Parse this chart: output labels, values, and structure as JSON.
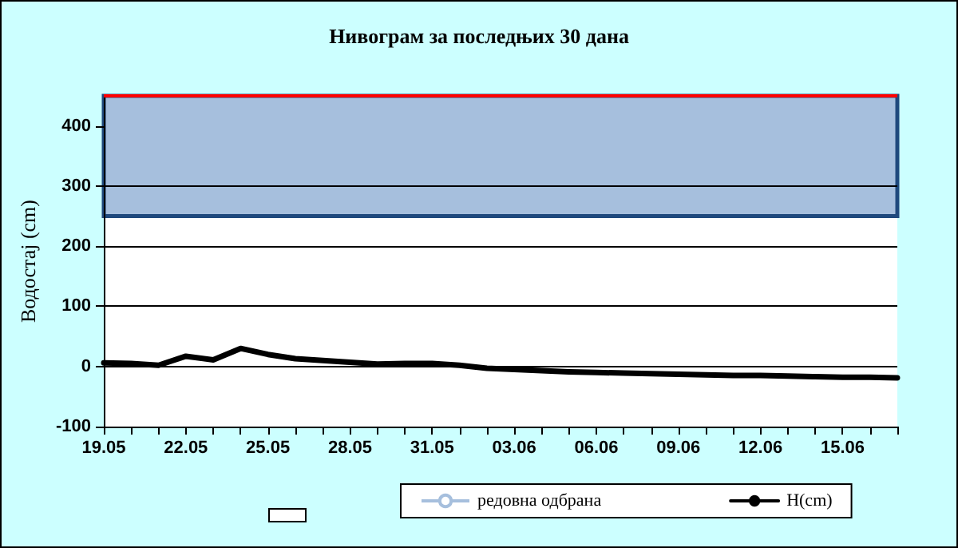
{
  "chart_data": {
    "type": "line",
    "title": "Нивограм за последњих 30 дана",
    "ylabel": "Водостај (cm)",
    "categories": [
      "19.05",
      null,
      null,
      "22.05",
      null,
      null,
      "25.05",
      null,
      null,
      "28.05",
      null,
      null,
      "31.05",
      null,
      null,
      "03.06",
      null,
      null,
      "06.06",
      null,
      null,
      "09.06",
      null,
      null,
      "12.06",
      null,
      null,
      "15.06",
      null,
      null
    ],
    "series": [
      {
        "name": "H(cm)",
        "color": "#000000",
        "values": [
          6,
          5,
          2,
          17,
          11,
          30,
          20,
          13,
          10,
          7,
          4,
          5,
          5,
          2,
          -3,
          -5,
          -7,
          -9,
          -10,
          -11,
          -12,
          -13,
          -14,
          -15,
          -15,
          -16,
          -17,
          -18,
          -18,
          -19
        ]
      }
    ],
    "bands": [
      {
        "axis": "y",
        "from": 250,
        "to": 450,
        "label": "редовна одбрана",
        "color": "#a6bfdd"
      }
    ],
    "ref_lines": [
      {
        "axis": "y",
        "value": 450,
        "color": "#ff0000"
      }
    ],
    "ylim": [
      -100,
      450
    ],
    "yticks": [
      -100,
      0,
      100,
      200,
      300,
      400
    ],
    "grid": "y",
    "legend": "bottom",
    "marker": "none",
    "line_style": "solid"
  }
}
